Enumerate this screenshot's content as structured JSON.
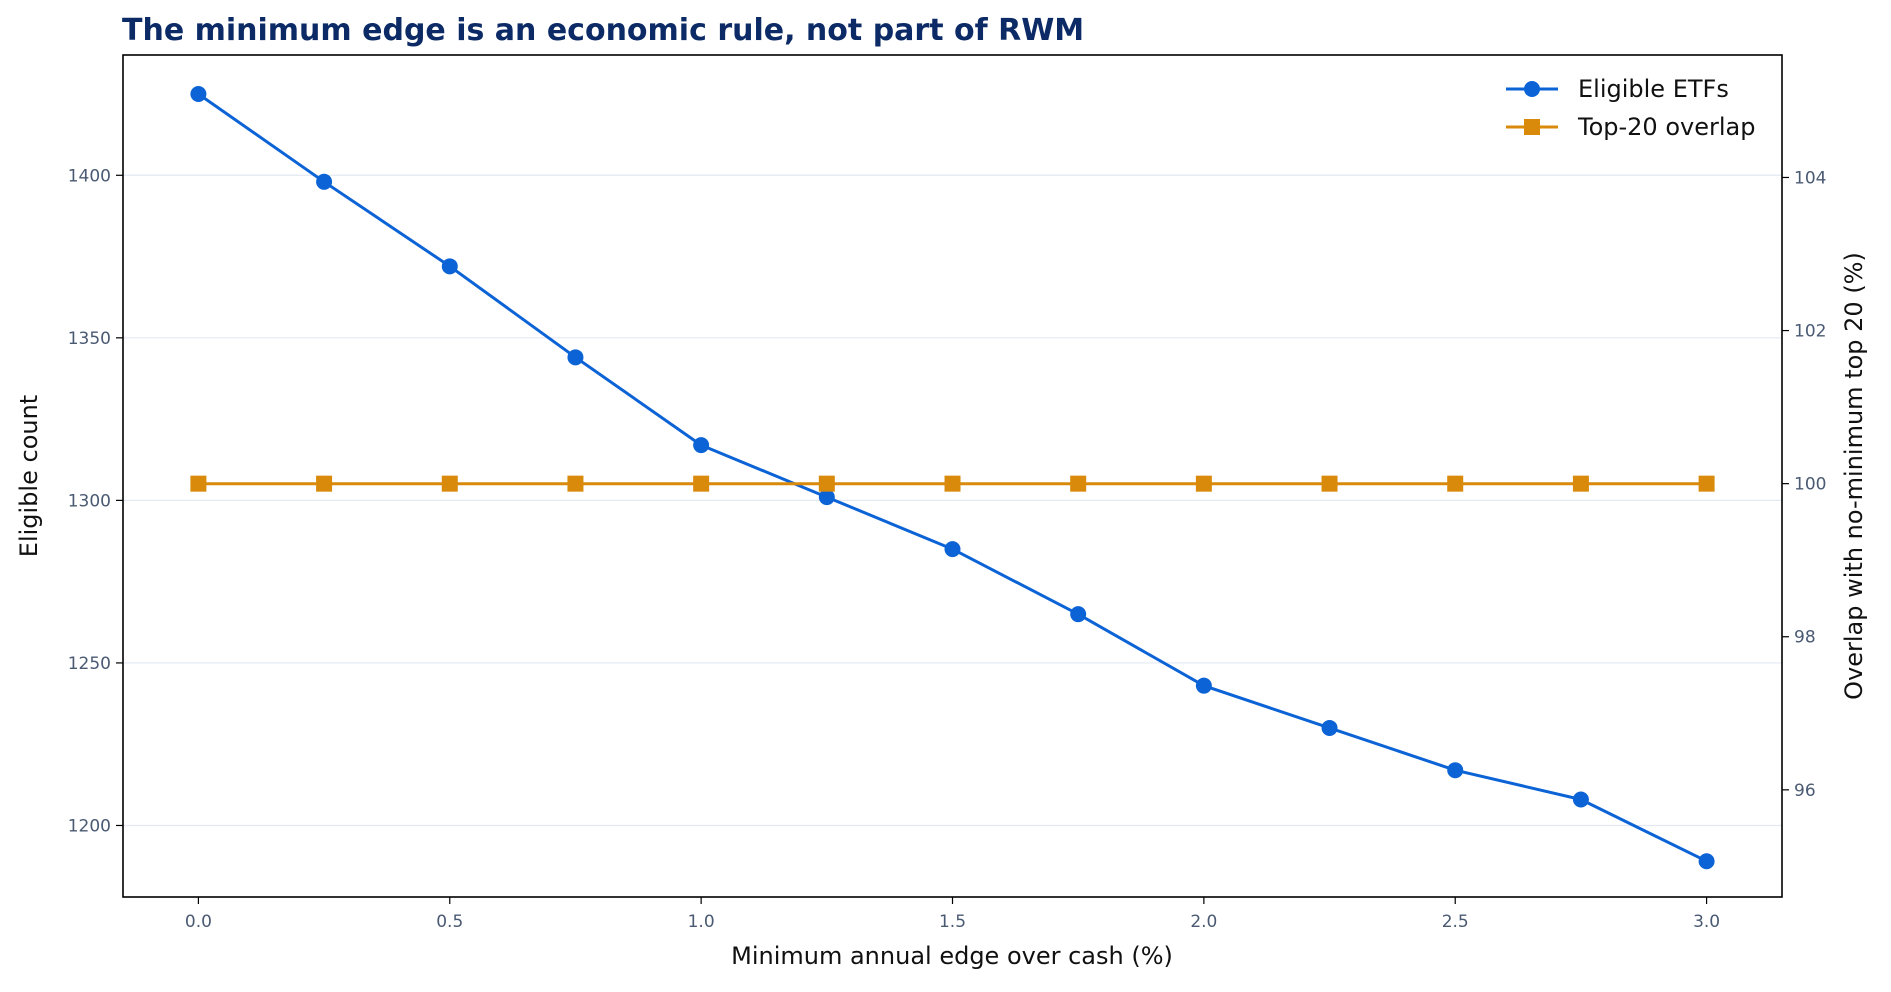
{
  "chart_data": {
    "type": "line",
    "title": "The minimum edge is an economic rule, not part of RWM",
    "xlabel": "Minimum annual edge over cash (%)",
    "ylabel": "Eligible count",
    "y2label": "Overlap with no-minimum top 20 (%)",
    "x": [
      0.0,
      0.25,
      0.5,
      0.75,
      1.0,
      1.25,
      1.5,
      1.75,
      2.0,
      2.25,
      2.5,
      2.75,
      3.0
    ],
    "xlim": [
      -0.15,
      3.15
    ],
    "ylim": [
      1178,
      1437
    ],
    "y2lim": [
      94.6,
      105.6
    ],
    "xticks": [
      "0.0",
      "0.5",
      "1.0",
      "1.5",
      "2.0",
      "2.5",
      "3.0"
    ],
    "yticks": [
      "1200",
      "1250",
      "1300",
      "1350",
      "1400"
    ],
    "y2ticks": [
      "96",
      "98",
      "100",
      "102",
      "104"
    ],
    "grid": "horizontal (left axis)",
    "legend_position": "top-right",
    "series": [
      {
        "name": "Eligible ETFs",
        "axis": "left",
        "marker": "circle",
        "color": "#0b63d6",
        "values": [
          1425,
          1398,
          1372,
          1344,
          1317,
          1301,
          1285,
          1265,
          1243,
          1230,
          1217,
          1208,
          1189
        ]
      },
      {
        "name": "Top-20 overlap",
        "axis": "right",
        "marker": "square",
        "color": "#d98a0b",
        "values": [
          100,
          100,
          100,
          100,
          100,
          100,
          100,
          100,
          100,
          100,
          100,
          100,
          100
        ]
      }
    ]
  }
}
